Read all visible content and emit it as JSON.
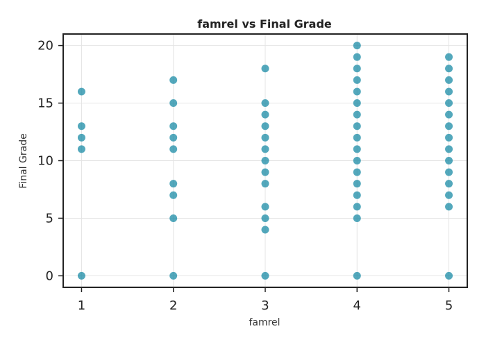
{
  "chart_data": {
    "type": "scatter",
    "title": "famrel vs Final Grade",
    "xlabel": "famrel",
    "ylabel": "Final Grade",
    "xlim": [
      0.8,
      5.2
    ],
    "ylim": [
      -1,
      21
    ],
    "xticks": [
      1,
      2,
      3,
      4,
      5
    ],
    "yticks": [
      0,
      5,
      10,
      15,
      20
    ],
    "grid": true,
    "point_color": "#1a8ba6",
    "series": [
      {
        "points": [
          {
            "x": 1,
            "y": 0
          },
          {
            "x": 1,
            "y": 11
          },
          {
            "x": 1,
            "y": 12
          },
          {
            "x": 1,
            "y": 13
          },
          {
            "x": 1,
            "y": 16
          },
          {
            "x": 2,
            "y": 0
          },
          {
            "x": 2,
            "y": 5
          },
          {
            "x": 2,
            "y": 7
          },
          {
            "x": 2,
            "y": 8
          },
          {
            "x": 2,
            "y": 11
          },
          {
            "x": 2,
            "y": 12
          },
          {
            "x": 2,
            "y": 13
          },
          {
            "x": 2,
            "y": 15
          },
          {
            "x": 2,
            "y": 17
          },
          {
            "x": 3,
            "y": 0
          },
          {
            "x": 3,
            "y": 4
          },
          {
            "x": 3,
            "y": 5
          },
          {
            "x": 3,
            "y": 6
          },
          {
            "x": 3,
            "y": 8
          },
          {
            "x": 3,
            "y": 9
          },
          {
            "x": 3,
            "y": 10
          },
          {
            "x": 3,
            "y": 11
          },
          {
            "x": 3,
            "y": 12
          },
          {
            "x": 3,
            "y": 13
          },
          {
            "x": 3,
            "y": 14
          },
          {
            "x": 3,
            "y": 15
          },
          {
            "x": 3,
            "y": 18
          },
          {
            "x": 4,
            "y": 0
          },
          {
            "x": 4,
            "y": 5
          },
          {
            "x": 4,
            "y": 6
          },
          {
            "x": 4,
            "y": 7
          },
          {
            "x": 4,
            "y": 8
          },
          {
            "x": 4,
            "y": 9
          },
          {
            "x": 4,
            "y": 10
          },
          {
            "x": 4,
            "y": 11
          },
          {
            "x": 4,
            "y": 12
          },
          {
            "x": 4,
            "y": 13
          },
          {
            "x": 4,
            "y": 14
          },
          {
            "x": 4,
            "y": 15
          },
          {
            "x": 4,
            "y": 16
          },
          {
            "x": 4,
            "y": 17
          },
          {
            "x": 4,
            "y": 18
          },
          {
            "x": 4,
            "y": 19
          },
          {
            "x": 4,
            "y": 20
          },
          {
            "x": 5,
            "y": 0
          },
          {
            "x": 5,
            "y": 6
          },
          {
            "x": 5,
            "y": 7
          },
          {
            "x": 5,
            "y": 8
          },
          {
            "x": 5,
            "y": 9
          },
          {
            "x": 5,
            "y": 10
          },
          {
            "x": 5,
            "y": 11
          },
          {
            "x": 5,
            "y": 12
          },
          {
            "x": 5,
            "y": 13
          },
          {
            "x": 5,
            "y": 14
          },
          {
            "x": 5,
            "y": 15
          },
          {
            "x": 5,
            "y": 16
          },
          {
            "x": 5,
            "y": 17
          },
          {
            "x": 5,
            "y": 18
          },
          {
            "x": 5,
            "y": 19
          }
        ]
      }
    ]
  }
}
